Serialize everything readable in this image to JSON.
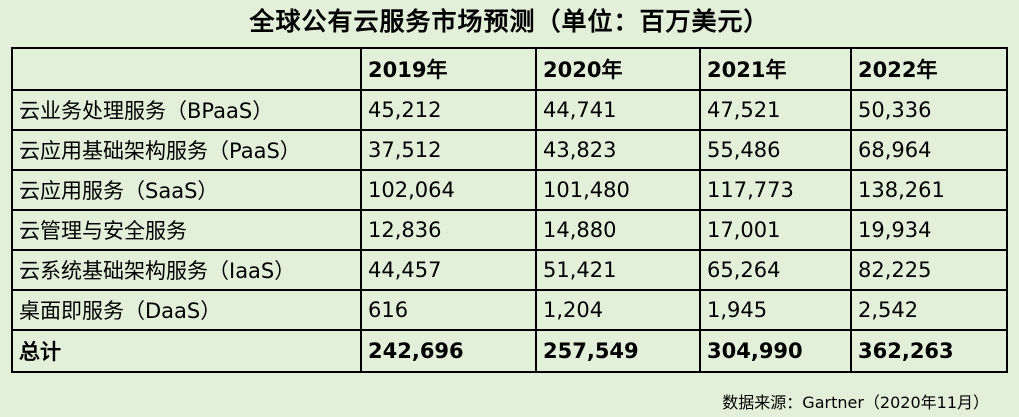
{
  "title": "全球公有云服务市场预测（单位：百万美元）",
  "table": {
    "headers": [
      "",
      "2019年",
      "2020年",
      "2021年",
      "2022年"
    ],
    "rows": [
      {
        "label": "云业务处理服务（BPaaS）",
        "values": [
          "45,212",
          "44,741",
          "47,521",
          "50,336"
        ]
      },
      {
        "label": "云应用基础架构服务（PaaS）",
        "values": [
          "37,512",
          "43,823",
          "55,486",
          "68,964"
        ]
      },
      {
        "label": "云应用服务（SaaS）",
        "values": [
          "102,064",
          "101,480",
          "117,773",
          "138,261"
        ]
      },
      {
        "label": "云管理与安全服务",
        "values": [
          "12,836",
          "14,880",
          "17,001",
          "19,934"
        ]
      },
      {
        "label": "云系统基础架构服务（IaaS）",
        "values": [
          "44,457",
          "51,421",
          "65,264",
          "82,225"
        ]
      },
      {
        "label": "桌面即服务（DaaS）",
        "values": [
          "616",
          "1,204",
          "1,945",
          "2,542"
        ]
      }
    ],
    "total": {
      "label": "总计",
      "values": [
        "242,696",
        "257,549",
        "304,990",
        "362,263"
      ]
    }
  },
  "source": "数据来源：Gartner（2020年11月）",
  "colors": {
    "background": "#e2f0d9",
    "border": "#000000"
  }
}
